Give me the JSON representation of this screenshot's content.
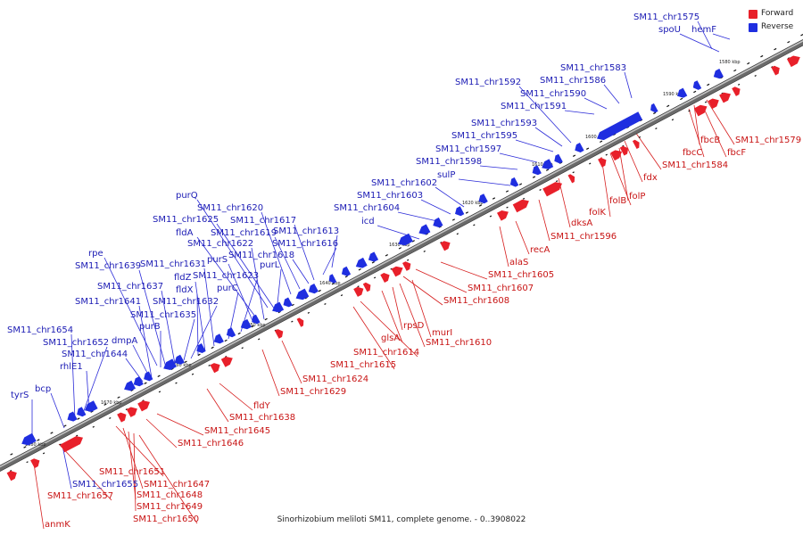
{
  "caption": "Sinorhizobium meliloti SM11, complete genome. - 0..3908022",
  "legend": {
    "forward_label": "Forward",
    "reverse_label": "Reverse",
    "forward_color": "#e8202a",
    "reverse_color": "#1f2ee0"
  },
  "ticks": [
    "1580 kbp",
    "1590 kbp",
    "1600 kbp",
    "1610 kbp",
    "1620 kbp",
    "1630 kbp",
    "1640 kbp",
    "1650 kbp",
    "1660 kbp",
    "1670 kbp",
    "1680 kbp"
  ],
  "reverse_genes": [
    "hemF",
    "SM11_chr1575",
    "spoU",
    "SM11_chr1583",
    "SM11_chr1586",
    "SM11_chr1590",
    "SM11_chr1591",
    "SM11_chr1592",
    "SM11_chr1593",
    "SM11_chr1595",
    "SM11_chr1597",
    "SM11_chr1598",
    "sulP",
    "SM11_chr1602",
    "SM11_chr1603",
    "SM11_chr1604",
    "icd",
    "SM11_chr1613",
    "SM11_chr1616",
    "SM11_chr1617",
    "SM11_chr1618",
    "SM11_chr1619",
    "SM11_chr1620",
    "purQ",
    "SM11_chr1625",
    "fldA",
    "SM11_chr1622",
    "purS",
    "SM11_chr1623",
    "purL",
    "purC",
    "SM11_chr1631",
    "fldZ",
    "fldX",
    "SM11_chr1632",
    "rpe",
    "SM11_chr1639",
    "SM11_chr1637",
    "SM11_chr1641",
    "SM11_chr1635",
    "purB",
    "dmpA",
    "SM11_chr1644",
    "SM11_chr1654",
    "SM11_chr1652",
    "rhlE1",
    "bcp",
    "tyrS",
    "SM11_chr1655"
  ],
  "forward_genes": [
    "SM11_chr1579",
    "fbcB",
    "fbcC",
    "fbcF",
    "SM11_chr1584",
    "fdx",
    "folP",
    "folB",
    "folK",
    "dksA",
    "SM11_chr1596",
    "recA",
    "alaS",
    "SM11_chr1605",
    "SM11_chr1607",
    "SM11_chr1608",
    "murI",
    "SM11_chr1610",
    "rpsD",
    "glsA",
    "SM11_chr1614",
    "SM11_chr1615",
    "SM11_chr1624",
    "SM11_chr1629",
    "fldY",
    "SM11_chr1638",
    "SM11_chr1645",
    "SM11_chr1646",
    "SM11_chr1651",
    "SM11_chr1647",
    "SM11_chr1648",
    "SM11_chr1649",
    "SM11_chr1650",
    "SM11_chr1657",
    "anmK"
  ]
}
